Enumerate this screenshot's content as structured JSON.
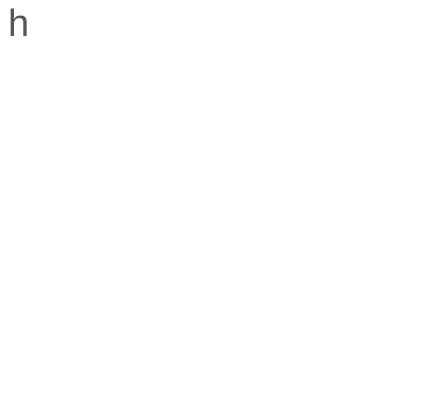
{
  "panel": {
    "label": "h"
  }
}
